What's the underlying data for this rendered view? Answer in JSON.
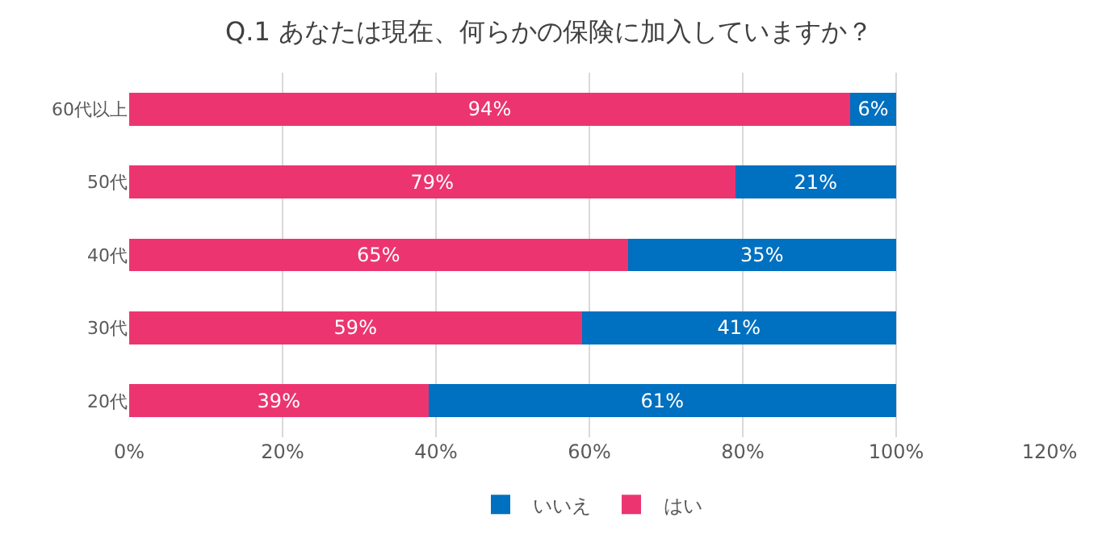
{
  "chart_data": {
    "type": "bar",
    "orientation": "horizontal",
    "stacked": true,
    "title": "Q.1 あなたは現在、何らかの保険に加入していますか？",
    "categories": [
      "60代以上",
      "50代",
      "40代",
      "30代",
      "20代"
    ],
    "series": [
      {
        "name": "はい",
        "color": "#ec3570",
        "values": [
          94,
          79,
          65,
          59,
          39
        ],
        "value_labels": [
          "94%",
          "79%",
          "65%",
          "59%",
          "39%"
        ]
      },
      {
        "name": "いいえ",
        "color": "#0070c0",
        "values": [
          6,
          21,
          35,
          41,
          61
        ],
        "value_labels": [
          "6%",
          "21%",
          "35%",
          "41%",
          "61%"
        ]
      }
    ],
    "xlim": [
      0,
      120
    ],
    "xticks": [
      {
        "value": 0,
        "label": "0%"
      },
      {
        "value": 20,
        "label": "20%"
      },
      {
        "value": 40,
        "label": "40%"
      },
      {
        "value": 60,
        "label": "60%"
      },
      {
        "value": 80,
        "label": "80%"
      },
      {
        "value": 100,
        "label": "100%"
      },
      {
        "value": 120,
        "label": "120%"
      }
    ],
    "grid": "x",
    "legend": "bottom"
  }
}
